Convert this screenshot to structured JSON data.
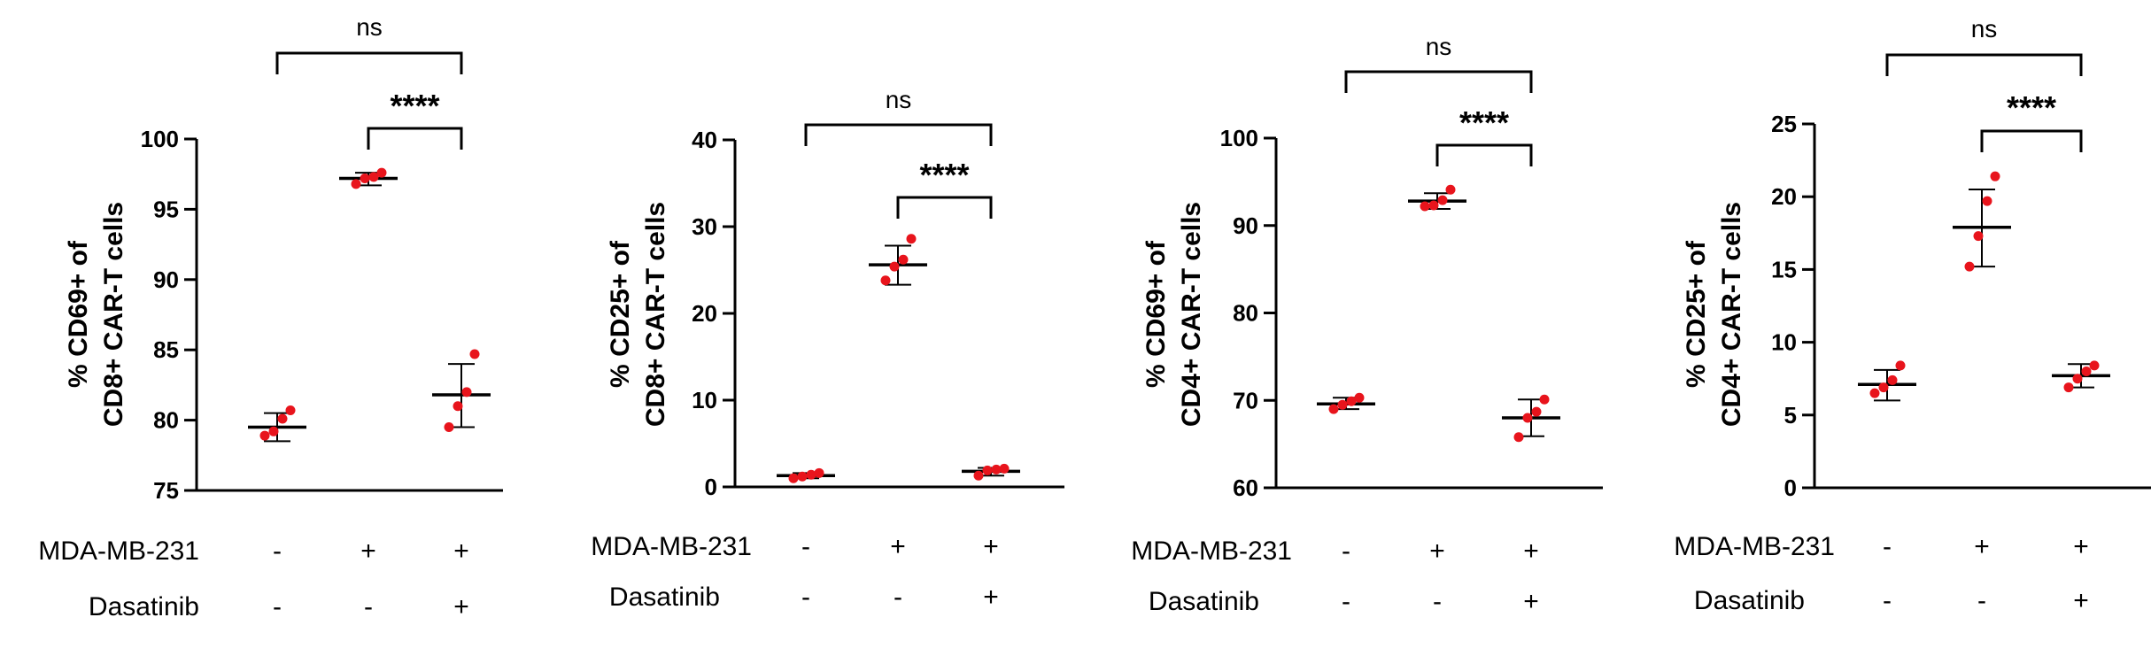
{
  "chart_data": [
    {
      "type": "scatter",
      "ylabel": [
        "% CD69+ of",
        "CD8+ CAR-T cells"
      ],
      "ylim": [
        75,
        100
      ],
      "yticks": [
        75,
        80,
        85,
        90,
        95,
        100
      ],
      "groups": [
        {
          "points": [
            78.9,
            79.2,
            80.1,
            80.7
          ],
          "mean": 79.5,
          "err": [
            78.5,
            80.5
          ]
        },
        {
          "points": [
            96.8,
            97.2,
            97.3,
            97.6
          ],
          "mean": 97.2,
          "err": [
            96.7,
            97.6
          ]
        },
        {
          "points": [
            79.5,
            81.0,
            82.0,
            84.7
          ],
          "mean": 81.8,
          "err": [
            79.5,
            84.0
          ]
        }
      ],
      "conditions": [
        {
          "label": "MDA-MB-231",
          "values": [
            "-",
            "+",
            "+"
          ]
        },
        {
          "label": "Dasatinib",
          "values": [
            "-",
            "-",
            "+"
          ]
        }
      ],
      "brackets": [
        {
          "from": 0,
          "to": 2,
          "label": "ns"
        },
        {
          "from": 1,
          "to": 2,
          "label": "****"
        }
      ]
    },
    {
      "type": "scatter",
      "ylabel": [
        "% CD25+ of",
        "CD8+ CAR-T cells"
      ],
      "ylim": [
        0,
        40
      ],
      "yticks": [
        0,
        10,
        20,
        30,
        40
      ],
      "groups": [
        {
          "points": [
            1.0,
            1.2,
            1.4,
            1.6
          ],
          "mean": 1.3,
          "err": [
            1.0,
            1.6
          ]
        },
        {
          "points": [
            23.8,
            25.4,
            26.2,
            28.6
          ],
          "mean": 25.6,
          "err": [
            23.3,
            27.8
          ]
        },
        {
          "points": [
            1.3,
            1.9,
            2.0,
            2.1
          ],
          "mean": 1.8,
          "err": [
            1.3,
            2.2
          ]
        }
      ],
      "conditions": [
        {
          "label": "MDA-MB-231",
          "values": [
            "-",
            "+",
            "+"
          ]
        },
        {
          "label": "Dasatinib",
          "values": [
            "-",
            "-",
            "+"
          ]
        }
      ],
      "brackets": [
        {
          "from": 0,
          "to": 2,
          "label": "ns"
        },
        {
          "from": 1,
          "to": 2,
          "label": "****"
        }
      ]
    },
    {
      "type": "scatter",
      "ylabel": [
        "% CD69+ of",
        "CD4+ CAR-T cells"
      ],
      "ylim": [
        60,
        100
      ],
      "yticks": [
        60,
        70,
        80,
        90,
        100
      ],
      "groups": [
        {
          "points": [
            69.0,
            69.5,
            69.9,
            70.3
          ],
          "mean": 69.6,
          "err": [
            69.0,
            70.3
          ]
        },
        {
          "points": [
            92.2,
            92.3,
            92.9,
            94.1
          ],
          "mean": 92.8,
          "err": [
            91.9,
            93.7
          ]
        },
        {
          "points": [
            65.8,
            68.0,
            68.7,
            70.1
          ],
          "mean": 68.0,
          "err": [
            65.9,
            70.1
          ]
        }
      ],
      "conditions": [
        {
          "label": "MDA-MB-231",
          "values": [
            "-",
            "+",
            "+"
          ]
        },
        {
          "label": "Dasatinib",
          "values": [
            "-",
            "-",
            "+"
          ]
        }
      ],
      "brackets": [
        {
          "from": 0,
          "to": 2,
          "label": "ns"
        },
        {
          "from": 1,
          "to": 2,
          "label": "****"
        }
      ]
    },
    {
      "type": "scatter",
      "ylabel": [
        "% CD25+ of",
        "CD4+ CAR-T cells"
      ],
      "ylim": [
        0,
        25
      ],
      "yticks": [
        0,
        5,
        10,
        15,
        20,
        25
      ],
      "groups": [
        {
          "points": [
            6.5,
            6.9,
            7.4,
            8.4
          ],
          "mean": 7.1,
          "err": [
            6.0,
            8.1
          ]
        },
        {
          "points": [
            15.2,
            17.3,
            19.7,
            21.4
          ],
          "mean": 17.9,
          "err": [
            15.2,
            20.5
          ]
        },
        {
          "points": [
            6.9,
            7.5,
            8.0,
            8.4
          ],
          "mean": 7.7,
          "err": [
            6.9,
            8.5
          ]
        }
      ],
      "conditions": [
        {
          "label": "MDA-MB-231",
          "values": [
            "-",
            "+",
            "+"
          ]
        },
        {
          "label": "Dasatinib",
          "values": [
            "-",
            "-",
            "+"
          ]
        }
      ],
      "brackets": [
        {
          "from": 0,
          "to": 2,
          "label": "ns"
        },
        {
          "from": 1,
          "to": 2,
          "label": "****"
        }
      ]
    }
  ],
  "colors": {
    "points": "#e8141c",
    "lines": "#000000"
  }
}
